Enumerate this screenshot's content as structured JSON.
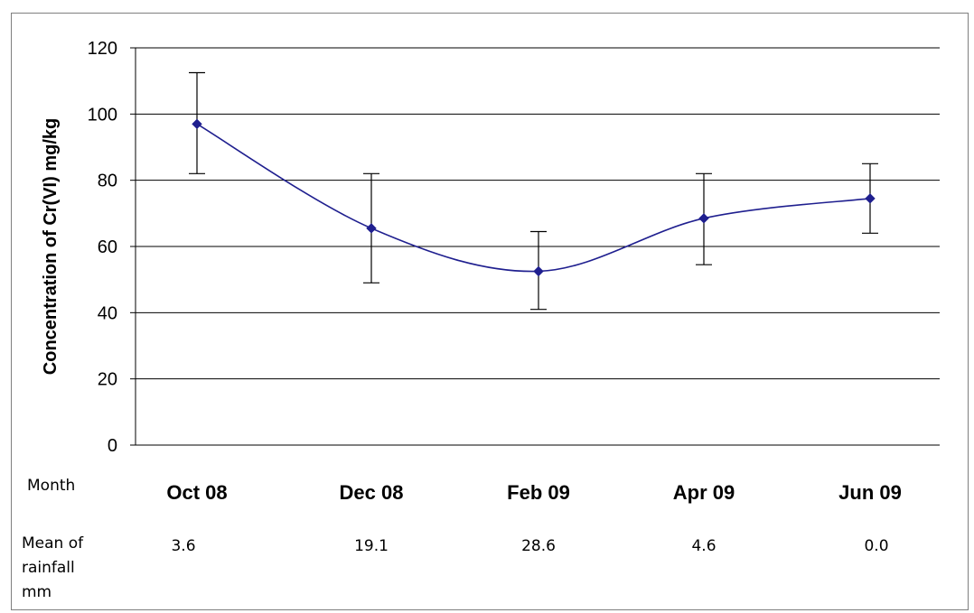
{
  "chart_data": {
    "type": "line",
    "title": "",
    "ylabel": "Concentration of Cr(VI) mg/kg",
    "xlabel": "",
    "ylim": [
      0,
      120
    ],
    "yticks": [
      0,
      20,
      40,
      60,
      80,
      100,
      120
    ],
    "grid": true,
    "categories": [
      "Oct 08",
      "Dec 08",
      "Feb 09",
      "Apr 09",
      "Jun 09"
    ],
    "series": [
      {
        "values": [
          97,
          65.5,
          52.5,
          68.5,
          74.5
        ],
        "error_low": [
          82,
          49,
          41,
          54.5,
          64
        ],
        "error_high": [
          112.5,
          82,
          64.5,
          82,
          85
        ],
        "color": "#1f1f8f"
      }
    ]
  },
  "table": {
    "month_label": "Month",
    "rainfall_label": [
      "Mean of",
      "rainfall",
      "mm"
    ],
    "rainfall_values": [
      "3.6",
      "19.1",
      "28.6",
      "4.6",
      "0.0"
    ]
  }
}
